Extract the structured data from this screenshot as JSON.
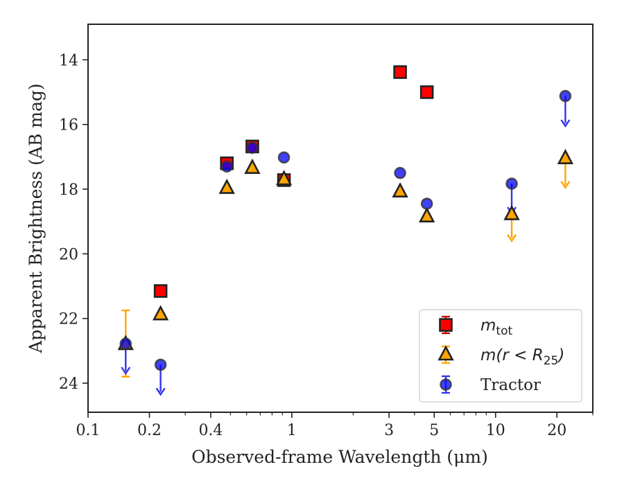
{
  "chart_data": {
    "type": "scatter",
    "xlabel": "Observed-frame Wavelength (μm)",
    "ylabel": "Apparent Brightness (AB mag)",
    "xscale": "log",
    "xlim": [
      0.1,
      30
    ],
    "ylim": [
      24.9,
      12.9
    ],
    "y_inverted": true,
    "grid": false,
    "legend_position": "lower-right",
    "x_ticks": [
      {
        "value": 0.1,
        "label": "0.1"
      },
      {
        "value": 0.2,
        "label": "0.2"
      },
      {
        "value": 0.4,
        "label": "0.4"
      },
      {
        "value": 1,
        "label": "1"
      },
      {
        "value": 3,
        "label": "3"
      },
      {
        "value": 5,
        "label": "5"
      },
      {
        "value": 10,
        "label": "10"
      },
      {
        "value": 20,
        "label": "20"
      }
    ],
    "x_minor_ticks": [
      0.3,
      0.5,
      0.6,
      0.7,
      0.8,
      0.9,
      2,
      4,
      6,
      7,
      8,
      9,
      30
    ],
    "y_ticks": [
      {
        "value": 14,
        "label": "14"
      },
      {
        "value": 16,
        "label": "16"
      },
      {
        "value": 18,
        "label": "18"
      },
      {
        "value": 20,
        "label": "20"
      },
      {
        "value": 22,
        "label": "22"
      },
      {
        "value": 24,
        "label": "24"
      }
    ],
    "series": [
      {
        "name": "m_tot",
        "legend_main": "m",
        "legend_sub": "tot",
        "marker": "square",
        "color": "#ff0000",
        "error_color": "#cc0000",
        "points": [
          {
            "x": 0.227,
            "y": 21.15
          },
          {
            "x": 0.48,
            "y": 17.2
          },
          {
            "x": 0.64,
            "y": 16.68
          },
          {
            "x": 0.915,
            "y": 17.72
          },
          {
            "x": 3.4,
            "y": 14.38
          },
          {
            "x": 4.6,
            "y": 15.0
          }
        ]
      },
      {
        "name": "m(r<R25)",
        "legend_main": "m(r < R",
        "legend_sub": "25",
        "legend_tail": ")",
        "marker": "triangle",
        "color": "#ffa500",
        "error_color": "#ffa500",
        "points": [
          {
            "x": 0.153,
            "y": 22.8,
            "err_low": 21.75,
            "err_high": 23.8
          },
          {
            "x": 0.227,
            "y": 21.88
          },
          {
            "x": 0.48,
            "y": 17.97
          },
          {
            "x": 0.64,
            "y": 17.35
          },
          {
            "x": 0.915,
            "y": 17.7
          },
          {
            "x": 3.4,
            "y": 18.08
          },
          {
            "x": 4.6,
            "y": 18.85
          },
          {
            "x": 12.0,
            "y": 18.78,
            "upper_limit_to": 19.6
          },
          {
            "x": 22.0,
            "y": 17.05,
            "upper_limit_to": 17.95
          }
        ]
      },
      {
        "name": "Tractor",
        "legend_main": "Tractor",
        "marker": "circle",
        "color": "#0000ff",
        "error_color": "#3333ee",
        "points": [
          {
            "x": 0.153,
            "y": 22.78,
            "upper_limit_to": 23.7
          },
          {
            "x": 0.227,
            "y": 23.43,
            "upper_limit_to": 24.35
          },
          {
            "x": 0.48,
            "y": 17.3
          },
          {
            "x": 0.64,
            "y": 16.72
          },
          {
            "x": 0.915,
            "y": 17.02
          },
          {
            "x": 3.4,
            "y": 17.5
          },
          {
            "x": 4.6,
            "y": 18.45
          },
          {
            "x": 12.0,
            "y": 17.83,
            "upper_limit_to": 18.75
          },
          {
            "x": 22.0,
            "y": 15.12,
            "upper_limit_to": 16.05
          }
        ]
      }
    ]
  }
}
